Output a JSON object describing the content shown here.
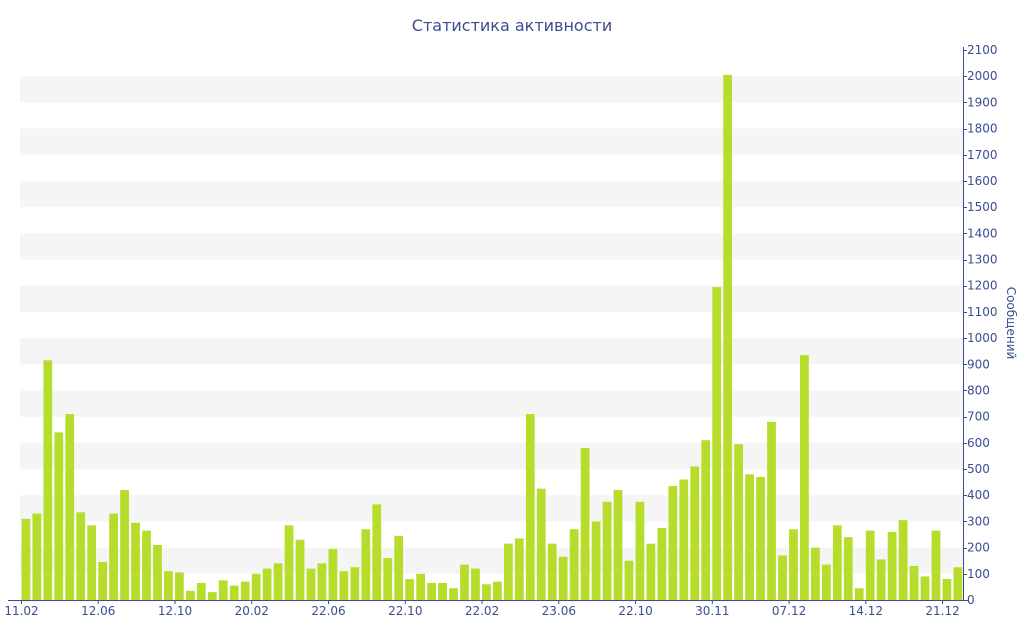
{
  "chart_data": {
    "type": "bar",
    "title": "Статистика активности",
    "ylabel": "Сообщений",
    "xlabel": "",
    "ylim": [
      0,
      2100
    ],
    "yticks": [
      0,
      100,
      200,
      300,
      400,
      500,
      600,
      700,
      800,
      900,
      1000,
      1100,
      1200,
      1300,
      1400,
      1500,
      1600,
      1700,
      1800,
      1900,
      2000,
      2100
    ],
    "x_tick_labels": [
      {
        "label": "11.02",
        "index": 0
      },
      {
        "label": "12.06",
        "index": 7
      },
      {
        "label": "12.10",
        "index": 14
      },
      {
        "label": "20.02",
        "index": 21
      },
      {
        "label": "22.06",
        "index": 28
      },
      {
        "label": "22.10",
        "index": 35
      },
      {
        "label": "22.02",
        "index": 42
      },
      {
        "label": "23.06",
        "index": 49
      },
      {
        "label": "22.10",
        "index": 56
      },
      {
        "label": "30.11",
        "index": 63
      },
      {
        "label": "07.12",
        "index": 70
      },
      {
        "label": "14.12",
        "index": 77
      },
      {
        "label": "21.12",
        "index": 84
      }
    ],
    "values": [
      310,
      330,
      915,
      640,
      710,
      335,
      285,
      145,
      330,
      420,
      295,
      265,
      210,
      110,
      105,
      35,
      65,
      30,
      75,
      55,
      70,
      100,
      120,
      140,
      285,
      230,
      120,
      140,
      195,
      110,
      125,
      270,
      365,
      160,
      245,
      80,
      100,
      65,
      65,
      45,
      135,
      120,
      60,
      70,
      215,
      235,
      710,
      425,
      215,
      165,
      270,
      580,
      300,
      375,
      420,
      150,
      375,
      215,
      275,
      435,
      460,
      510,
      610,
      1195,
      2005,
      595,
      480,
      470,
      680,
      170,
      270,
      935,
      200,
      135,
      285,
      240,
      45,
      265,
      155,
      260,
      305,
      130,
      90,
      265,
      80,
      125
    ],
    "bar_color": "#b6dd2b",
    "band_color": "#f5f5f5",
    "axis_color": "#3b4d8f",
    "grid": "alternating bands",
    "axis_position": "right"
  }
}
